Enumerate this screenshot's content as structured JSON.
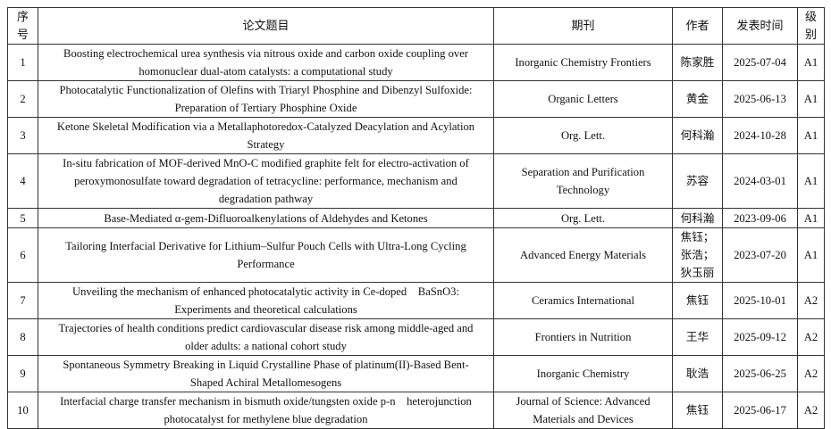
{
  "headers": [
    "序号",
    "论文题目",
    "期刊",
    "作者",
    "发表时间",
    "级别"
  ],
  "rows": [
    {
      "no": "1",
      "title": "Boosting electrochemical urea synthesis via nitrous oxide and carbon oxide coupling over homonuclear dual-atom catalysts: a computational study",
      "journal": "Inorganic Chemistry Frontiers",
      "author": "陈家胜",
      "date": "2025-07-04",
      "level": "A1"
    },
    {
      "no": "2",
      "title": "Photocatalytic Functionalization of Olefins with Triaryl Phosphine and Dibenzyl Sulfoxide: Preparation of Tertiary Phosphine Oxide",
      "journal": "Organic Letters",
      "author": "黄金",
      "date": "2025-06-13",
      "level": "A1"
    },
    {
      "no": "3",
      "title": "Ketone Skeletal Modification via a Metallaphotoredox-Catalyzed Deacylation and Acylation Strategy",
      "journal": "Org. Lett.",
      "author": "何科瀚",
      "date": "2024-10-28",
      "level": "A1"
    },
    {
      "no": "4",
      "title": "In-situ fabrication of MOF-derived MnO-C modified graphite felt for electro-activation of peroxymonosulfate toward degradation of tetracycline: performance, mechanism and degradation pathway",
      "journal": "Separation and Purification Technology",
      "author": "苏容",
      "date": "2024-03-01",
      "level": "A1"
    },
    {
      "no": "5",
      "title": "Base-Mediated α-gem-Difluoroalkenylations of Aldehydes and Ketones",
      "journal": "Org. Lett.",
      "author": "何科瀚",
      "date": "2023-09-06",
      "level": "A1"
    },
    {
      "no": "6",
      "title": "Tailoring Interfacial Derivative for Lithium–Sulfur Pouch Cells with Ultra-Long Cycling Performance",
      "journal": "Advanced Energy Materials",
      "author": "焦钰；张浩；狄玉丽",
      "date": "2023-07-20",
      "level": "A1"
    },
    {
      "no": "7",
      "title": "Unveiling the mechanism of enhanced photocatalytic activity in Ce-doped    BaSnO3: Experiments and theoretical calculations",
      "journal": "Ceramics International",
      "author": "焦钰",
      "date": "2025-10-01",
      "level": "A2"
    },
    {
      "no": "8",
      "title": "Trajectories of health conditions predict cardiovascular disease risk among middle-aged and older adults: a national cohort study",
      "journal": "Frontiers in Nutrition",
      "author": "王华",
      "date": "2025-09-12",
      "level": "A2"
    },
    {
      "no": "9",
      "title": "Spontaneous Symmetry Breaking in Liquid Crystalline Phase of platinum(II)-Based Bent-Shaped Achiral Metallomesogens",
      "journal": "Inorganic Chemistry",
      "author": "耿浩",
      "date": "2025-06-25",
      "level": "A2"
    },
    {
      "no": "10",
      "title": "Interfacial charge transfer mechanism in bismuth oxide/tungsten oxide p-n    heterojunction photocatalyst for methylene blue degradation",
      "journal": "Journal of Science: Advanced Materials and Devices",
      "author": "焦钰",
      "date": "2025-06-17",
      "level": "A2"
    }
  ]
}
